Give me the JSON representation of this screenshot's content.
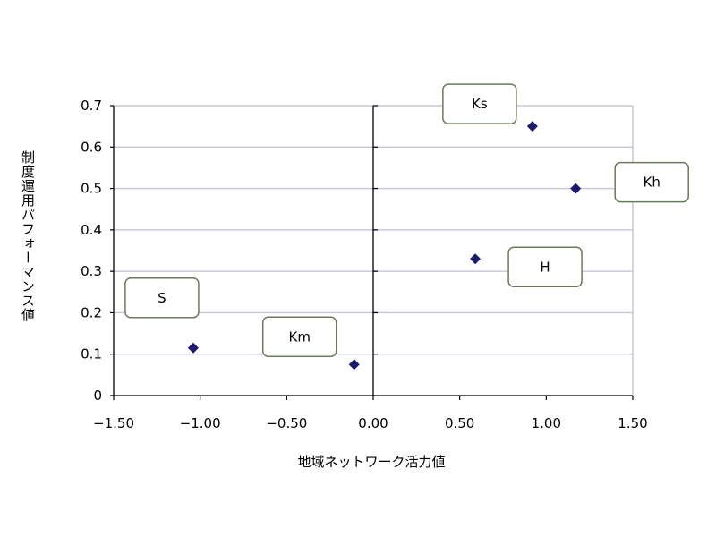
{
  "chart_data": {
    "type": "scatter",
    "title": "",
    "xlabel": "地域ネットワーク活力値",
    "ylabel": "制度運用パフォーマンス値",
    "xlim": [
      -1.5,
      1.5
    ],
    "ylim": [
      0,
      0.7
    ],
    "x_ticks": [
      -1.5,
      -1.0,
      -0.5,
      0.0,
      0.5,
      1.0,
      1.5
    ],
    "x_tick_labels": [
      "−1.50",
      "−1.00",
      "−0.50",
      "0.00",
      "0.50",
      "1.00",
      "1.50"
    ],
    "y_ticks": [
      0,
      0.1,
      0.2,
      0.3,
      0.4,
      0.5,
      0.6,
      0.7
    ],
    "y_tick_labels": [
      "0",
      "0.1",
      "0.2",
      "0.3",
      "0.4",
      "0.5",
      "0.6",
      "0.7"
    ],
    "grid": "horizontal",
    "points": [
      {
        "label": "Ks",
        "x": 0.92,
        "y": 0.65
      },
      {
        "label": "Kh",
        "x": 1.17,
        "y": 0.5
      },
      {
        "label": "H",
        "x": 0.59,
        "y": 0.33
      },
      {
        "label": "S",
        "x": -1.04,
        "y": 0.115
      },
      {
        "label": "Km",
        "x": -0.11,
        "y": 0.075
      }
    ],
    "marker_color": "#1a1a6e",
    "grid_color": "#c9c9d6",
    "callout_border_color": "#6b7a5a"
  }
}
